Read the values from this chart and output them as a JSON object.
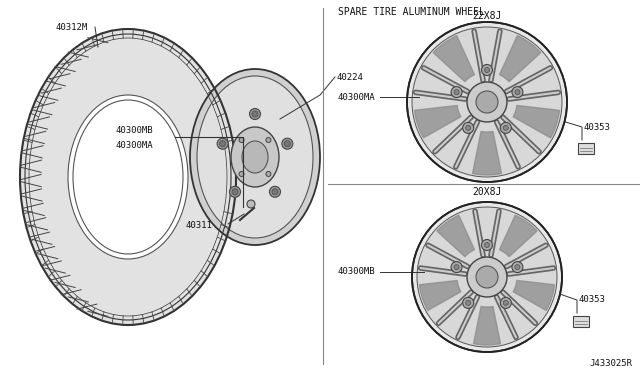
{
  "bg_color": "#ffffff",
  "section_title": "SPARE TIRE ALUMINUM WHEEL",
  "left_parts": {
    "tire_label": "40312M",
    "wheel_label": "40224",
    "valve_label": "40311",
    "upper_label1": "40300MA",
    "upper_label2": "40300MB"
  },
  "right_top": {
    "size_label": "22X8J",
    "wheel_label": "40300MA",
    "sticker_label": "40353"
  },
  "right_bottom": {
    "size_label": "20X8J",
    "wheel_label": "40300MB",
    "sticker_label": "40353"
  },
  "diagram_id": "J433025R",
  "line_color": "#333333",
  "text_color": "#111111",
  "font_size_small": 6.5,
  "font_size_section": 7.0
}
